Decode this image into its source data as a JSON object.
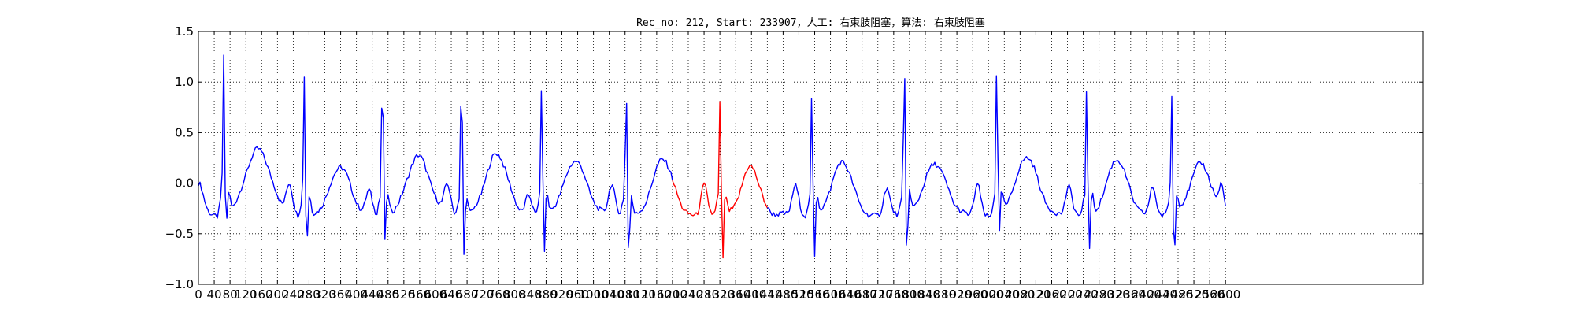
{
  "chart_data": {
    "type": "line",
    "title": "Rec_no: 212, Start: 233907，人工: 右束肢阻塞，算法: 右束肢阻塞",
    "xlabel": "",
    "ylabel": "",
    "xlim": [
      0,
      3100
    ],
    "ylim": [
      -1.0,
      1.5
    ],
    "y_ticks": [
      -1.0,
      -0.5,
      0.0,
      0.5,
      1.0,
      1.5
    ],
    "y_tick_labels": [
      "−1.0",
      "−0.5",
      "0.0",
      "0.5",
      "1.0",
      "1.5"
    ],
    "x_ticks": [
      0,
      40,
      80,
      120,
      160,
      200,
      240,
      280,
      320,
      360,
      400,
      440,
      480,
      520,
      560,
      600,
      640,
      680,
      720,
      760,
      800,
      840,
      880,
      920,
      960,
      1000,
      1040,
      1080,
      1120,
      1160,
      1200,
      1240,
      1280,
      1320,
      1360,
      1400,
      1440,
      1480,
      1520,
      1560,
      1600,
      1640,
      1680,
      1720,
      1760,
      1800,
      1840,
      1880,
      1920,
      1960,
      2000,
      2040,
      2080,
      2120,
      2160,
      2200,
      2240,
      2280,
      2320,
      2360,
      2400,
      2440,
      2480,
      2520,
      2560,
      2600
    ],
    "grid": true,
    "grid_style": "dotted",
    "sample_spacing": 4,
    "segments": [
      {
        "color": "#0000ff",
        "x_start": 0,
        "x_end": 1200
      },
      {
        "color": "#ff0000",
        "x_start": 1200,
        "x_end": 1440
      },
      {
        "color": "#0000ff",
        "x_start": 1440,
        "x_end": 2600
      }
    ],
    "beats": [
      {
        "t": 64,
        "r": 1.27,
        "s": -0.55
      },
      {
        "t": 268,
        "r": 1.14,
        "s": -0.72
      },
      {
        "t": 466,
        "r": 1.22,
        "s": -0.66
      },
      {
        "t": 666,
        "r": 1.26,
        "s": -0.78
      },
      {
        "t": 869,
        "r": 1.1,
        "s": -0.8
      },
      {
        "t": 1083,
        "r": 1.04,
        "s": -0.8
      },
      {
        "t": 1321,
        "r": 0.94,
        "s": -0.88
      },
      {
        "t": 1553,
        "r": 1.0,
        "s": -0.84
      },
      {
        "t": 1787,
        "r": 1.26,
        "s": -0.83
      },
      {
        "t": 2021,
        "r": 1.24,
        "s": -0.62
      },
      {
        "t": 2249,
        "r": 1.07,
        "s": -0.79
      },
      {
        "t": 2464,
        "r": 0.93,
        "s": -0.88
      }
    ],
    "waves": [
      {
        "t": 0,
        "a": 0.32,
        "w": 12
      },
      {
        "t": 48,
        "a": -0.03,
        "w": 5
      },
      {
        "t": 150,
        "a": 0.65,
        "w": 32
      },
      {
        "t": 230,
        "a": 0.3,
        "w": 8
      },
      {
        "t": 360,
        "a": 0.48,
        "w": 26
      },
      {
        "t": 432,
        "a": 0.24,
        "w": 8
      },
      {
        "t": 556,
        "a": 0.6,
        "w": 28
      },
      {
        "t": 630,
        "a": 0.3,
        "w": 8
      },
      {
        "t": 755,
        "a": 0.6,
        "w": 28
      },
      {
        "t": 836,
        "a": 0.2,
        "w": 8
      },
      {
        "t": 955,
        "a": 0.55,
        "w": 28
      },
      {
        "t": 1046,
        "a": 0.3,
        "w": 8
      },
      {
        "t": 1175,
        "a": 0.55,
        "w": 26
      },
      {
        "t": 1280,
        "a": 0.32,
        "w": 8
      },
      {
        "t": 1398,
        "a": 0.5,
        "w": 22
      },
      {
        "t": 1511,
        "a": 0.3,
        "w": 8
      },
      {
        "t": 1630,
        "a": 0.52,
        "w": 26
      },
      {
        "t": 1742,
        "a": 0.27,
        "w": 8
      },
      {
        "t": 1864,
        "a": 0.52,
        "w": 28
      },
      {
        "t": 1972,
        "a": 0.32,
        "w": 8
      },
      {
        "t": 2098,
        "a": 0.58,
        "w": 28
      },
      {
        "t": 2203,
        "a": 0.27,
        "w": 8
      },
      {
        "t": 2325,
        "a": 0.55,
        "w": 26
      },
      {
        "t": 2416,
        "a": 0.3,
        "w": 8
      },
      {
        "t": 2538,
        "a": 0.52,
        "w": 26
      },
      {
        "t": 2590,
        "a": 0.25,
        "w": 6
      }
    ]
  }
}
